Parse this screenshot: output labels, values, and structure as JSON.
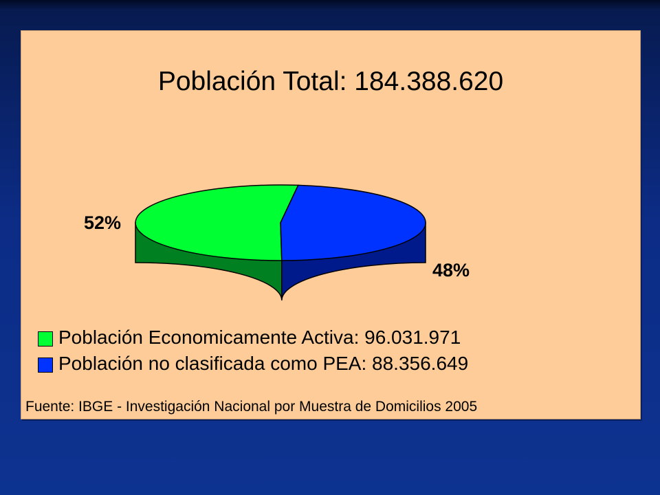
{
  "title": "Población Total: 184.388.620",
  "chart_data": {
    "type": "pie",
    "style": "3d",
    "title": "Población Total: 184.388.620",
    "slices": [
      {
        "label": "Población Economicamente Activa: 96.031.971",
        "value": 96031971,
        "percent_label": "52%",
        "color": "#00ff33",
        "side_color": "#008020"
      },
      {
        "label": "Población no clasificada como PEA: 88.356.649",
        "value": 88356649,
        "percent_label": "48%",
        "color": "#0033ff",
        "side_color": "#001a8c"
      }
    ],
    "legend_placement": "bottom-left"
  },
  "source": "Fuente: IBGE - Investigación Nacional por Muestra de Domicilios 2005",
  "colors": {
    "background_top": "#071a4e",
    "background_bottom": "#0d3390",
    "panel": "#fecc99"
  }
}
